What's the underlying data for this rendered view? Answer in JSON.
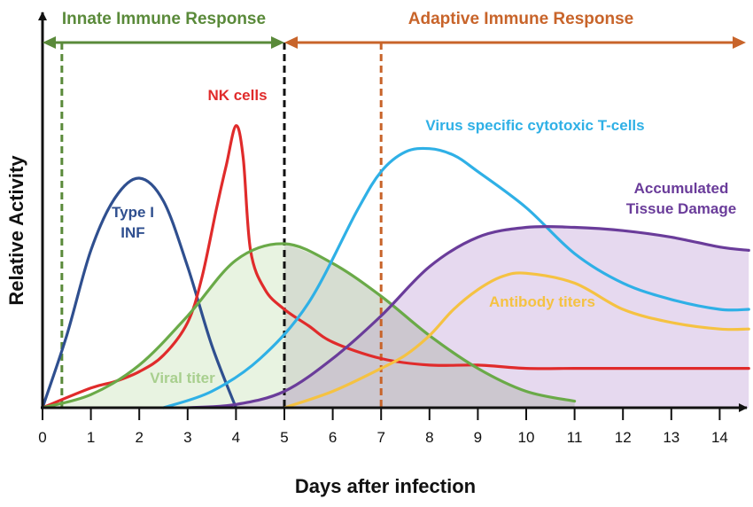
{
  "chart_data": {
    "type": "line",
    "xlabel": "Days after infection",
    "ylabel": "Relative Activity",
    "xlim": [
      0,
      14.6
    ],
    "ylim": [
      0,
      1.0
    ],
    "x_ticks": [
      "0",
      "1",
      "2",
      "3",
      "4",
      "5",
      "6",
      "7",
      "8",
      "9",
      "10",
      "11",
      "12",
      "13",
      "14"
    ],
    "phases": [
      {
        "label": "Innate Immune Response",
        "from": 0,
        "to": 5,
        "color": "#5a8a3a"
      },
      {
        "label": "Adaptive Immune Response",
        "from": 5,
        "to": 14.6,
        "color": "#c8642a"
      }
    ],
    "reference_lines": [
      {
        "x": 0.4,
        "color": "#5a8a3a"
      },
      {
        "x": 5,
        "color": "#111111"
      },
      {
        "x": 7,
        "color": "#c8642a"
      }
    ],
    "series": [
      {
        "name": "Type I INF",
        "color": "#2f4f8f",
        "fill": null,
        "label_lines": [
          "Type I",
          "INF"
        ],
        "x": [
          0,
          0.5,
          1,
          1.5,
          2,
          2.5,
          3,
          3.5,
          4
        ],
        "y": [
          0.0,
          0.22,
          0.48,
          0.64,
          0.7,
          0.63,
          0.43,
          0.19,
          0.0
        ]
      },
      {
        "name": "NK cells",
        "color": "#e02b2b",
        "fill": null,
        "label_lines": [
          "NK cells"
        ],
        "x": [
          0,
          1,
          1.5,
          2,
          2.5,
          3,
          3.3,
          3.6,
          3.8,
          4,
          4.15,
          4.3,
          4.6,
          5,
          5.5,
          6,
          7,
          8,
          9,
          10,
          11,
          12,
          13,
          14,
          14.6
        ],
        "y": [
          0.0,
          0.06,
          0.08,
          0.11,
          0.16,
          0.26,
          0.4,
          0.61,
          0.74,
          0.86,
          0.76,
          0.48,
          0.36,
          0.3,
          0.25,
          0.2,
          0.15,
          0.13,
          0.13,
          0.12,
          0.12,
          0.12,
          0.12,
          0.12,
          0.12
        ]
      },
      {
        "name": "Viral titer",
        "color": "#6aaa48",
        "fill": "rgba(190,220,170,0.35)",
        "label_lines": [
          "Viral titer"
        ],
        "x": [
          0,
          1,
          2,
          3,
          4,
          5,
          6,
          7,
          8,
          9,
          10,
          11
        ],
        "y": [
          0.0,
          0.04,
          0.13,
          0.28,
          0.45,
          0.5,
          0.44,
          0.34,
          0.22,
          0.12,
          0.05,
          0.02
        ]
      },
      {
        "name": "Virus specific cytotoxic T-cells",
        "color": "#2fb0e6",
        "fill": null,
        "label_lines": [
          "Virus specific cytotoxic T-cells"
        ],
        "x": [
          2.5,
          3.5,
          4.5,
          5.5,
          6.5,
          7,
          7.5,
          8,
          8.5,
          9,
          10,
          11,
          12,
          13,
          14,
          14.6
        ],
        "y": [
          0.0,
          0.05,
          0.15,
          0.32,
          0.6,
          0.72,
          0.78,
          0.79,
          0.77,
          0.72,
          0.61,
          0.47,
          0.38,
          0.33,
          0.3,
          0.3
        ]
      },
      {
        "name": "Accumulated Tissue Damage",
        "color": "#6a3c9a",
        "fill": "rgba(200,170,220,0.45)",
        "label_lines": [
          "Accumulated",
          "Tissue Damage"
        ],
        "x": [
          3,
          4,
          5,
          6,
          7,
          8,
          9,
          10,
          11,
          12,
          13,
          14,
          14.6
        ],
        "y": [
          0.0,
          0.01,
          0.05,
          0.15,
          0.28,
          0.43,
          0.52,
          0.55,
          0.55,
          0.54,
          0.52,
          0.49,
          0.48
        ]
      },
      {
        "name": "Antibody titers",
        "color": "#f5c242",
        "fill": null,
        "label_lines": [
          "Antibody titers"
        ],
        "x": [
          5,
          6,
          7,
          7.5,
          8,
          8.5,
          9,
          9.5,
          10,
          11,
          12,
          13,
          14,
          14.6
        ],
        "y": [
          0.0,
          0.05,
          0.12,
          0.16,
          0.22,
          0.3,
          0.36,
          0.4,
          0.41,
          0.38,
          0.3,
          0.26,
          0.24,
          0.24
        ]
      }
    ],
    "shaded_overlap": {
      "color": "rgba(180,180,180,0.35)",
      "x": [
        5,
        6,
        7,
        8,
        9,
        10,
        11
      ],
      "y": [
        0.5,
        0.44,
        0.34,
        0.22,
        0.12,
        0.05,
        0.02
      ]
    }
  }
}
